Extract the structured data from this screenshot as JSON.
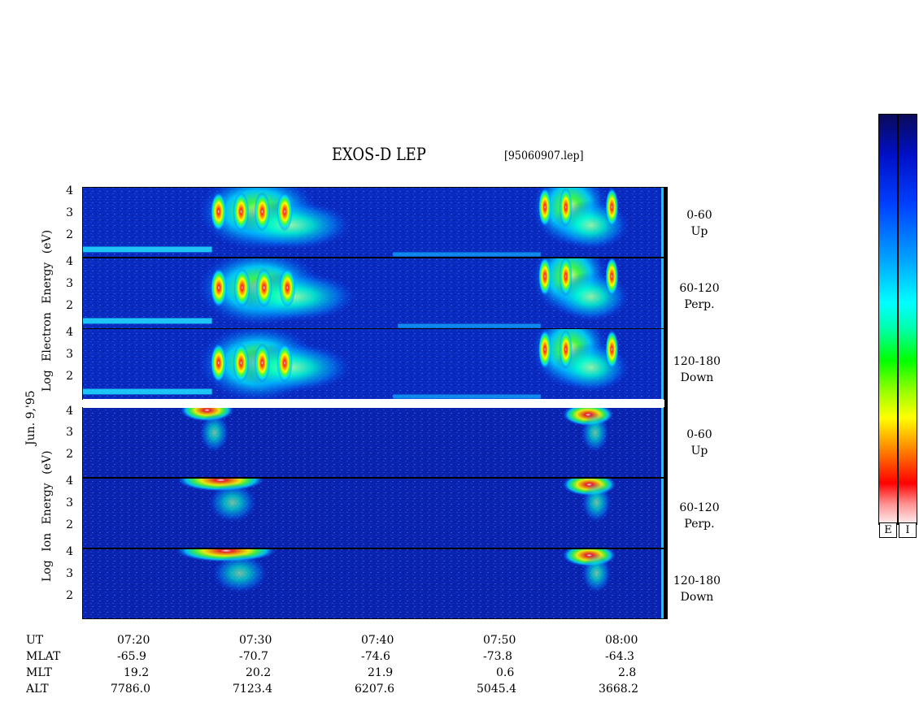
{
  "header": {
    "title": "EXOS-D LEP",
    "filename": "[95060907.lep]"
  },
  "date_label": "Jun. 9,'95",
  "electron_group": {
    "ylabel_words": [
      "Log",
      "Electron",
      "Energy",
      "(eV)"
    ]
  },
  "ion_group": {
    "ylabel_words": [
      "Log",
      "Ion",
      "Energy",
      "(eV)"
    ]
  },
  "panels": [
    {
      "angle": "0-60",
      "dir": "Up"
    },
    {
      "angle": "60-120",
      "dir": "Perp."
    },
    {
      "angle": "120-180",
      "dir": "Down"
    },
    {
      "angle": "0-60",
      "dir": "Up"
    },
    {
      "angle": "60-120",
      "dir": "Perp."
    },
    {
      "angle": "120-180",
      "dir": "Down"
    }
  ],
  "ticks": {
    "e_top": [
      "4",
      "3",
      "2"
    ],
    "e_mid": [
      "4",
      "3",
      "2"
    ],
    "e_bot": [
      "4",
      "3",
      "2"
    ],
    "i_top": [
      "4",
      "3",
      "2"
    ],
    "i_mid": [
      "4",
      "3",
      "2"
    ],
    "i_bot": [
      "4",
      "3",
      "2"
    ]
  },
  "colorbar": {
    "labels": [
      "E",
      "I"
    ]
  },
  "x_axis": {
    "rows": [
      {
        "name": "UT",
        "values": [
          "07:20",
          "07:30",
          "07:40",
          "07:50",
          "08:00"
        ]
      },
      {
        "name": "MLAT",
        "values": [
          "-65.9",
          "-70.7",
          "-74.6",
          "-73.8",
          "-64.3"
        ]
      },
      {
        "name": "MLT",
        "values": [
          "19.2",
          "20.2",
          "21.9",
          "0.6",
          "2.8"
        ]
      },
      {
        "name": "ALT",
        "values": [
          "7786.0",
          "7123.4",
          "6207.6",
          "5045.4",
          "3668.2"
        ]
      }
    ]
  },
  "chart_data": {
    "type": "heatmap",
    "title": "EXOS-D LEP",
    "x_range": [
      "07:15",
      "08:03"
    ],
    "y_range_log_eV": [
      1,
      4.1
    ],
    "panels": [
      {
        "species": "electron",
        "pitch_angle": "0-60",
        "label": "Up",
        "events": [
          {
            "start": "07:25.7",
            "end": "07:36.6",
            "peak_logE": 3.0,
            "max_logE": 3.8,
            "intensity": "high"
          },
          {
            "start": "07:52.8",
            "end": "07:59.7",
            "peak_logE": 3.2,
            "max_logE": 3.9,
            "intensity": "high"
          }
        ]
      },
      {
        "species": "electron",
        "pitch_angle": "60-120",
        "label": "Perp.",
        "events": [
          {
            "start": "07:25.7",
            "end": "07:37.0",
            "peak_logE": 2.8,
            "max_logE": 3.8,
            "intensity": "high"
          },
          {
            "start": "07:52.8",
            "end": "07:59.7",
            "peak_logE": 3.3,
            "max_logE": 3.9,
            "intensity": "high"
          }
        ]
      },
      {
        "species": "electron",
        "pitch_angle": "120-180",
        "label": "Down",
        "events": [
          {
            "start": "07:25.7",
            "end": "07:36.6",
            "peak_logE": 2.6,
            "max_logE": 3.8,
            "intensity": "high"
          },
          {
            "start": "07:52.8",
            "end": "07:59.7",
            "peak_logE": 3.2,
            "max_logE": 3.9,
            "intensity": "high"
          }
        ]
      },
      {
        "species": "ion",
        "pitch_angle": "0-60",
        "label": "Up",
        "events": [
          {
            "start": "07:23.5",
            "end": "07:27.5",
            "peak_logE": 4.0,
            "intensity": "medium"
          },
          {
            "start": "07:55.0",
            "end": "07:58.8",
            "peak_logE": 3.8,
            "intensity": "medium"
          }
        ]
      },
      {
        "species": "ion",
        "pitch_angle": "60-120",
        "label": "Perp.",
        "events": [
          {
            "start": "07:23.5",
            "end": "07:30.0",
            "peak_logE": 4.0,
            "intensity": "medium"
          },
          {
            "start": "07:55.0",
            "end": "07:59.0",
            "peak_logE": 3.8,
            "intensity": "medium"
          }
        ]
      },
      {
        "species": "ion",
        "pitch_angle": "120-180",
        "label": "Down",
        "events": [
          {
            "start": "07:23.5",
            "end": "07:31.0",
            "peak_logE": 4.0,
            "intensity": "medium"
          },
          {
            "start": "07:55.0",
            "end": "07:59.0",
            "peak_logE": 3.8,
            "intensity": "medium"
          }
        ]
      }
    ],
    "colorbars": [
      "E",
      "I"
    ]
  }
}
